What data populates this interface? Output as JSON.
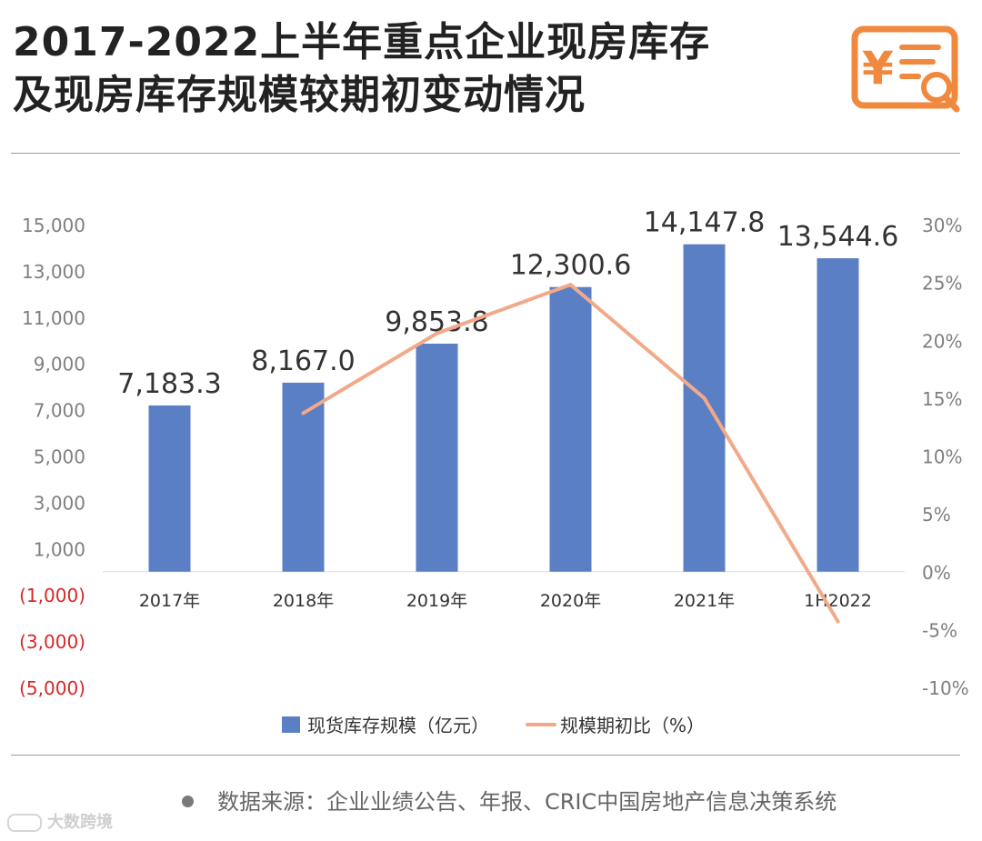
{
  "title": {
    "line1": "2017-2022上半年重点企业现房库存",
    "line2": "及现房库存规模较期初变动情况"
  },
  "header_icon": "receipt-yen-search-icon",
  "source": {
    "text": "数据来源：企业业绩公告、年报、CRIC中国房地产信息决策系统"
  },
  "brand": {
    "text": "大数跨境",
    "icon": "brand-logo-icon"
  },
  "colors": {
    "bar": "#5b7fc4",
    "line": "#f2a98a",
    "negative_tick": "#d62828",
    "axis_text": "#7f7f7f",
    "title": "#222222",
    "accent": "#f0883e"
  },
  "chart_data": {
    "type": "bar",
    "categories": [
      "2017年",
      "2018年",
      "2019年",
      "2020年",
      "2021年",
      "1H2022"
    ],
    "series": [
      {
        "name": "现货库存规模（亿元）",
        "type": "bar",
        "axis": "left",
        "values": [
          7183.3,
          8167.0,
          9853.8,
          12300.6,
          14147.8,
          13544.6
        ],
        "labels": [
          "7,183.3",
          "8,167.0",
          "9,853.8",
          "12,300.6",
          "14,147.8",
          "13,544.6"
        ]
      },
      {
        "name": "规模期初比（%）",
        "type": "line",
        "axis": "right",
        "values": [
          null,
          13.7,
          20.6,
          24.8,
          15.0,
          -4.3
        ]
      }
    ],
    "left_axis": {
      "ylim": [
        -5000,
        15000
      ],
      "ticks": [
        15000,
        13000,
        11000,
        9000,
        7000,
        5000,
        3000,
        1000,
        -1000,
        -3000,
        -5000
      ],
      "tick_labels": [
        "15,000",
        "13,000",
        "11,000",
        "9,000",
        "7,000",
        "5,000",
        "3,000",
        "1,000",
        "(1,000)",
        "(3,000)",
        "(5,000)"
      ]
    },
    "right_axis": {
      "ylim": [
        -10,
        30
      ],
      "ticks": [
        30,
        25,
        20,
        15,
        10,
        5,
        0,
        -5,
        -10
      ],
      "tick_labels": [
        "30%",
        "25%",
        "20%",
        "15%",
        "10%",
        "5%",
        "0%",
        "-5%",
        "-10%"
      ]
    },
    "grid": false,
    "legend": "bottom"
  }
}
